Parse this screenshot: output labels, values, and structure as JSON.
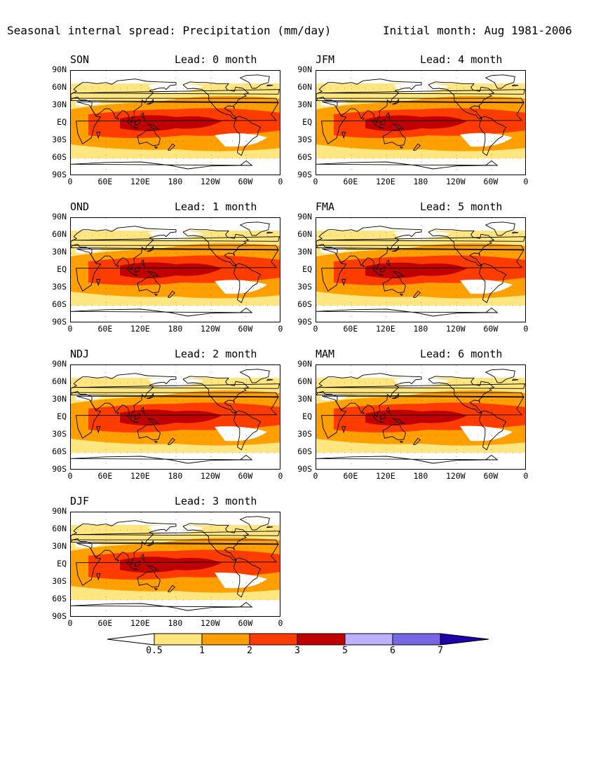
{
  "header": {
    "title": "Seasonal internal spread: Precipitation (mm/day)",
    "initial": "Initial month: Aug 1981-2006"
  },
  "panels": [
    {
      "season": "SON",
      "lead": "Lead: 0 month"
    },
    {
      "season": "JFM",
      "lead": "Lead: 4 month"
    },
    {
      "season": "OND",
      "lead": "Lead: 1 month"
    },
    {
      "season": "FMA",
      "lead": "Lead: 5 month"
    },
    {
      "season": "NDJ",
      "lead": "Lead: 2 month"
    },
    {
      "season": "MAM",
      "lead": "Lead: 6 month"
    },
    {
      "season": "DJF",
      "lead": "Lead: 3 month"
    }
  ],
  "axes": {
    "lat_ticks": [
      "90N",
      "60N",
      "30N",
      "EQ",
      "30S",
      "60S",
      "90S"
    ],
    "lon_ticks": [
      "0",
      "60E",
      "120E",
      "180",
      "120W",
      "60W",
      "0"
    ]
  },
  "colorbar": {
    "levels": [
      "0.5",
      "1",
      "2",
      "3",
      "5",
      "6",
      "7"
    ],
    "colors": [
      "#ffffff",
      "#ffe680",
      "#ff9f00",
      "#ff3c00",
      "#c00000",
      "#bdb0ff",
      "#7868e6",
      "#2000a8"
    ]
  }
}
